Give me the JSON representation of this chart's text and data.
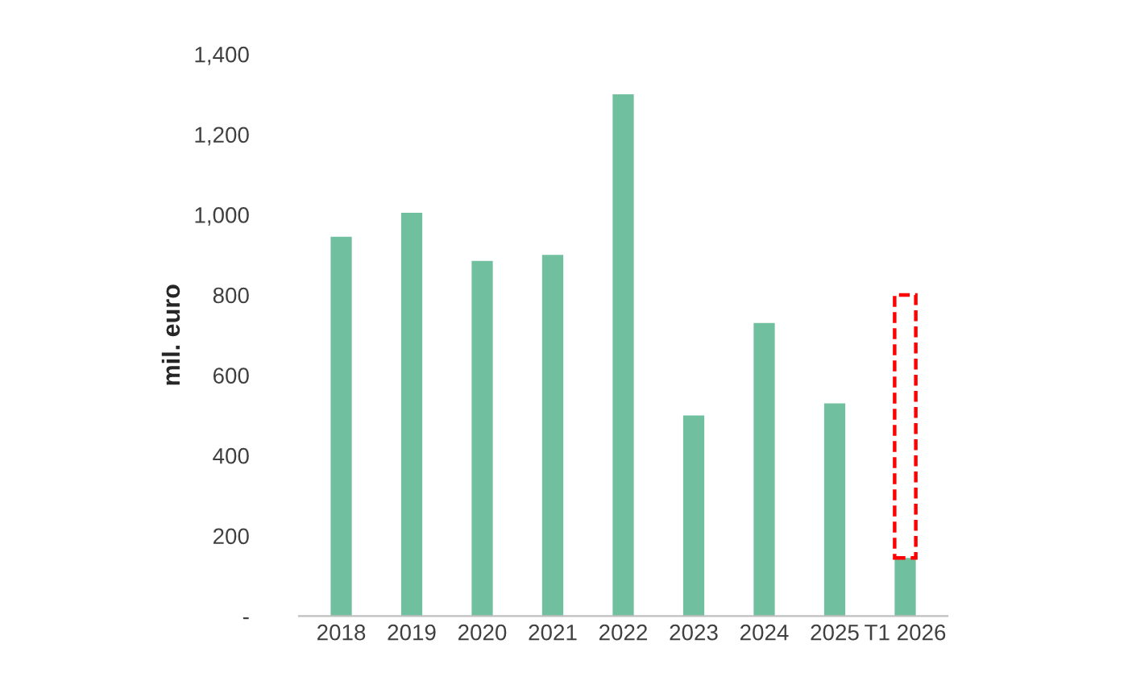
{
  "chart_data": {
    "type": "bar",
    "ylabel": "mil. euro",
    "stacked": true,
    "categories": [
      "2018",
      "2019",
      "2020",
      "2021",
      "2022",
      "2023",
      "2024",
      "2025",
      "T1 2026"
    ],
    "series": [
      {
        "color": "#70bf9f",
        "values": [
          945,
          1005,
          885,
          900,
          1300,
          500,
          730,
          530,
          145
        ]
      },
      {
        "color": "#ff0000",
        "line_style": "dashed",
        "values": [
          null,
          null,
          null,
          null,
          null,
          null,
          null,
          null,
          655
        ]
      }
    ],
    "ylim": [
      0,
      1400
    ],
    "yticks": [
      {
        "value": 0,
        "label": "-"
      },
      {
        "value": 200,
        "label": "200"
      },
      {
        "value": 400,
        "label": "400"
      },
      {
        "value": 600,
        "label": "600"
      },
      {
        "value": 800,
        "label": "800"
      },
      {
        "value": 1000,
        "label": "1,000"
      },
      {
        "value": 1200,
        "label": "1,200"
      },
      {
        "value": 1400,
        "label": "1,400"
      }
    ],
    "grid": false
  }
}
